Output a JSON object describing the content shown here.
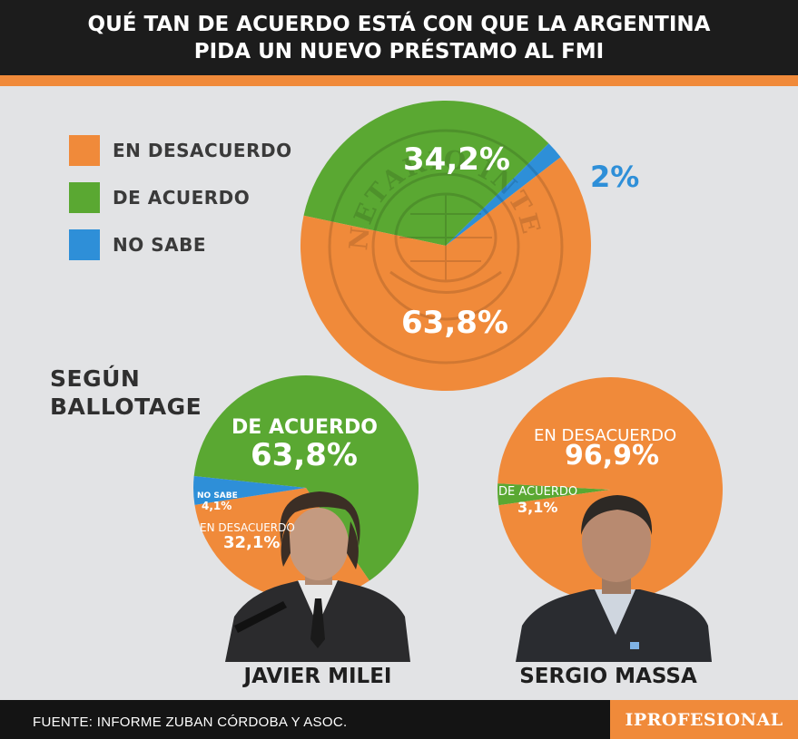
{
  "title": {
    "line1": "QUÉ TAN DE ACUERDO ESTÁ CON QUE LA ARGENTINA",
    "line2": "PIDA UN NUEVO PRÉSTAMO AL FMI"
  },
  "colors": {
    "desacuerdo": "#f08a3a",
    "acuerdo": "#5aa832",
    "no_sabe": "#2e8fd8",
    "header_bg": "#1c1c1c",
    "background": "#e2e3e5"
  },
  "legend": [
    {
      "label": "EN DESACUERDO",
      "color": "#f08a3a"
    },
    {
      "label": "DE ACUERDO",
      "color": "#5aa832"
    },
    {
      "label": "NO SABE",
      "color": "#2e8fd8"
    }
  ],
  "watermark": "FONDO MONETARIO INTERNACIONAL",
  "section_title": {
    "line1": "SEGÚN",
    "line2": "BALLOTAGE"
  },
  "chart_data": [
    {
      "type": "pie",
      "title": "QUÉ TAN DE ACUERDO ESTÁ CON QUE LA ARGENTINA PIDA UN NUEVO PRÉSTAMO AL FMI",
      "slices": [
        {
          "name": "EN DESACUERDO",
          "value": 63.8,
          "label": "63,8%",
          "color": "#f08a3a"
        },
        {
          "name": "DE ACUERDO",
          "value": 34.2,
          "label": "34,2%",
          "color": "#5aa832"
        },
        {
          "name": "NO SABE",
          "value": 2.0,
          "label": "2%",
          "color": "#2e8fd8"
        }
      ]
    },
    {
      "type": "pie",
      "title": "JAVIER MILEI",
      "slices": [
        {
          "name": "DE ACUERDO",
          "value": 63.8,
          "label": "63,8%",
          "color": "#5aa832"
        },
        {
          "name": "EN DESACUERDO",
          "value": 32.1,
          "label": "32,1%",
          "color": "#f08a3a"
        },
        {
          "name": "NO SABE",
          "value": 4.1,
          "label": "4,1%",
          "color": "#2e8fd8"
        }
      ]
    },
    {
      "type": "pie",
      "title": "SERGIO MASSA",
      "slices": [
        {
          "name": "EN DESACUERDO",
          "value": 96.9,
          "label": "96,9%",
          "color": "#f08a3a"
        },
        {
          "name": "DE ACUERDO",
          "value": 3.1,
          "label": "3,1%",
          "color": "#5aa832"
        }
      ]
    }
  ],
  "labels": {
    "main_acuerdo": "34,2%",
    "main_no_sabe": "2%",
    "main_desacuerdo": "63,8%",
    "milei_acuerdo_name": "DE ACUERDO",
    "milei_acuerdo_value": "63,8%",
    "milei_no_sabe_name": "NO SABE",
    "milei_no_sabe_value": "4,1%",
    "milei_desacuerdo_name": "EN DESACUERDO",
    "milei_desacuerdo_value": "32,1%",
    "massa_desacuerdo_name": "EN DESACUERDO",
    "massa_desacuerdo_value": "96,9%",
    "massa_acuerdo_name": "DE ACUERDO",
    "massa_acuerdo_value": "3,1%"
  },
  "candidates": {
    "milei": "JAVIER MILEI",
    "massa": "SERGIO MASSA"
  },
  "footer": {
    "source": "FUENTE: INFORME ZUBAN CÓRDOBA Y ASOC.",
    "logo": "IPROFESIONAL"
  }
}
